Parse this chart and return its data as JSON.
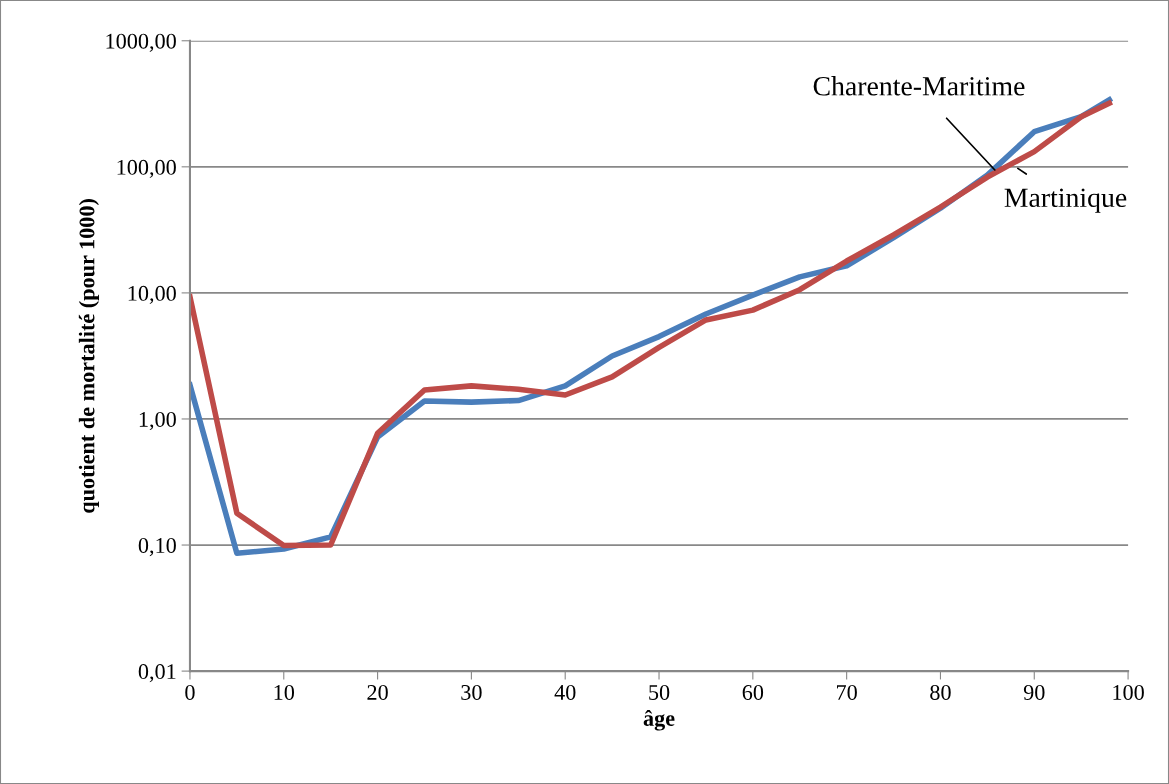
{
  "chart_data": {
    "type": "line",
    "xlabel": "âge",
    "ylabel": "quotient de mortalité (pour 1000)",
    "x": [
      0,
      5,
      10,
      15,
      20,
      25,
      30,
      35,
      40,
      45,
      50,
      55,
      60,
      65,
      70,
      75,
      80,
      85,
      90,
      95,
      98
    ],
    "series": [
      {
        "color": "#4a7ebb",
        "values": [
          1.86,
          0.086,
          0.093,
          0.116,
          0.72,
          1.39,
          1.36,
          1.4,
          1.83,
          3.16,
          4.5,
          6.8,
          9.6,
          13.4,
          16.4,
          27.4,
          47,
          86,
          190,
          250,
          340
        ]
      },
      {
        "color": "#be4b48",
        "values": [
          9.3,
          0.179,
          0.099,
          0.1,
          0.77,
          1.7,
          1.83,
          1.72,
          1.55,
          2.16,
          3.7,
          6.1,
          7.3,
          10.6,
          17.9,
          28.8,
          48,
          83,
          132,
          250,
          320
        ]
      }
    ],
    "annotations": [
      {
        "text": "Charente-Maritime",
        "x": 86,
        "y": 91
      },
      {
        "text": "Martinique",
        "x": 88,
        "y": 100
      }
    ],
    "log": "y",
    "grid": "y",
    "line_style": "solid",
    "marker": "none",
    "xlim": [
      0,
      100
    ],
    "xticks": [
      0,
      10,
      20,
      30,
      40,
      50,
      60,
      70,
      80,
      90,
      100
    ],
    "ylim": [
      0.01,
      1000
    ],
    "yticks": [
      {
        "value": 0.01,
        "label": "0,01"
      },
      {
        "value": 0.1,
        "label": "0,10"
      },
      {
        "value": 1,
        "label": "1,00"
      },
      {
        "value": 10,
        "label": "10,00"
      },
      {
        "value": 100,
        "label": "100,00"
      },
      {
        "value": 1000,
        "label": "1000,00"
      }
    ]
  }
}
